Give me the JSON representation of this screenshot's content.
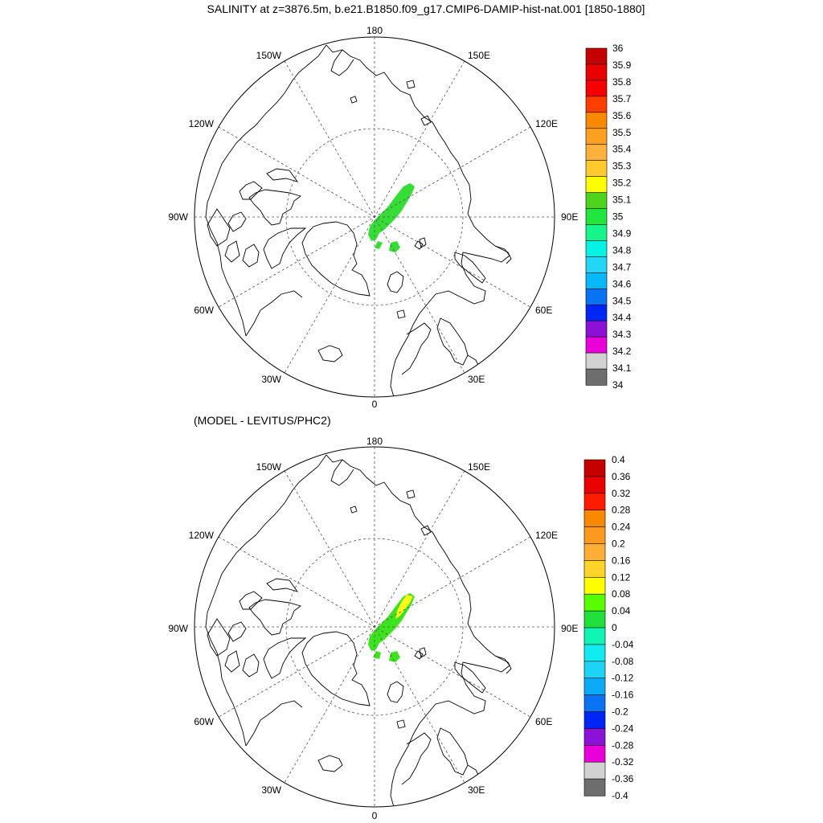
{
  "panels": [
    {
      "title": "SALINITY at z=3876.5m, b.e21.B1850.f09_g17.CMIP6-DAMIP-hist-nat.001 [1850-1880]",
      "lon_labels": [
        "180",
        "150E",
        "120E",
        "90E",
        "60E",
        "30E",
        "0",
        "30W",
        "60W",
        "90W",
        "120W",
        "150W"
      ],
      "colorbar": {
        "labels": [
          "36",
          "35.9",
          "35.8",
          "35.7",
          "35.6",
          "35.5",
          "35.4",
          "35.3",
          "35.2",
          "35.1",
          "35",
          "34.9",
          "34.8",
          "34.7",
          "34.6",
          "34.5",
          "34.4",
          "34.3",
          "34.2",
          "34.1",
          "34"
        ],
        "colors": [
          "#c40000",
          "#e80000",
          "#f60000",
          "#fe3d00",
          "#f98a00",
          "#fba020",
          "#fdb13b",
          "#feca2e",
          "#fefe00",
          "#4ed21c",
          "#20e63e",
          "#15f58b",
          "#05f2e5",
          "#23d6f6",
          "#08b8f9",
          "#0a73f1",
          "#0026f6",
          "#8d10d6",
          "#ea00d8",
          "#d2d2d2",
          "#6e6e6e"
        ]
      }
    },
    {
      "title": "(MODEL - LEVITUS/PHC2)",
      "lon_labels": [
        "180",
        "150E",
        "120E",
        "90E",
        "60E",
        "30E",
        "0",
        "30W",
        "60W",
        "90W",
        "120W",
        "150W"
      ],
      "colorbar": {
        "labels": [
          "0.4",
          "0.36",
          "0.32",
          "0.28",
          "0.24",
          "0.2",
          "0.16",
          "0.12",
          "0.08",
          "0.04",
          "0",
          "-0.04",
          "-0.08",
          "-0.12",
          "-0.16",
          "-0.2",
          "-0.24",
          "-0.28",
          "-0.32",
          "-0.36",
          "-0.4"
        ],
        "colors": [
          "#c40000",
          "#e80000",
          "#fe1c00",
          "#f98a00",
          "#fa9b1f",
          "#fdae34",
          "#fed42a",
          "#fefe00",
          "#58fd00",
          "#22e03c",
          "#10f5b4",
          "#12ecf0",
          "#1ed4f6",
          "#0aaaf9",
          "#0a73f1",
          "#0026f6",
          "#8d10d6",
          "#ea00d8",
          "#d2d2d2",
          "#6e6e6e"
        ]
      }
    }
  ],
  "field_colors": {
    "salinity_main": "#36dd36",
    "anomaly_main": "#3ce31e",
    "anomaly_positive": "#fcfc1c"
  }
}
